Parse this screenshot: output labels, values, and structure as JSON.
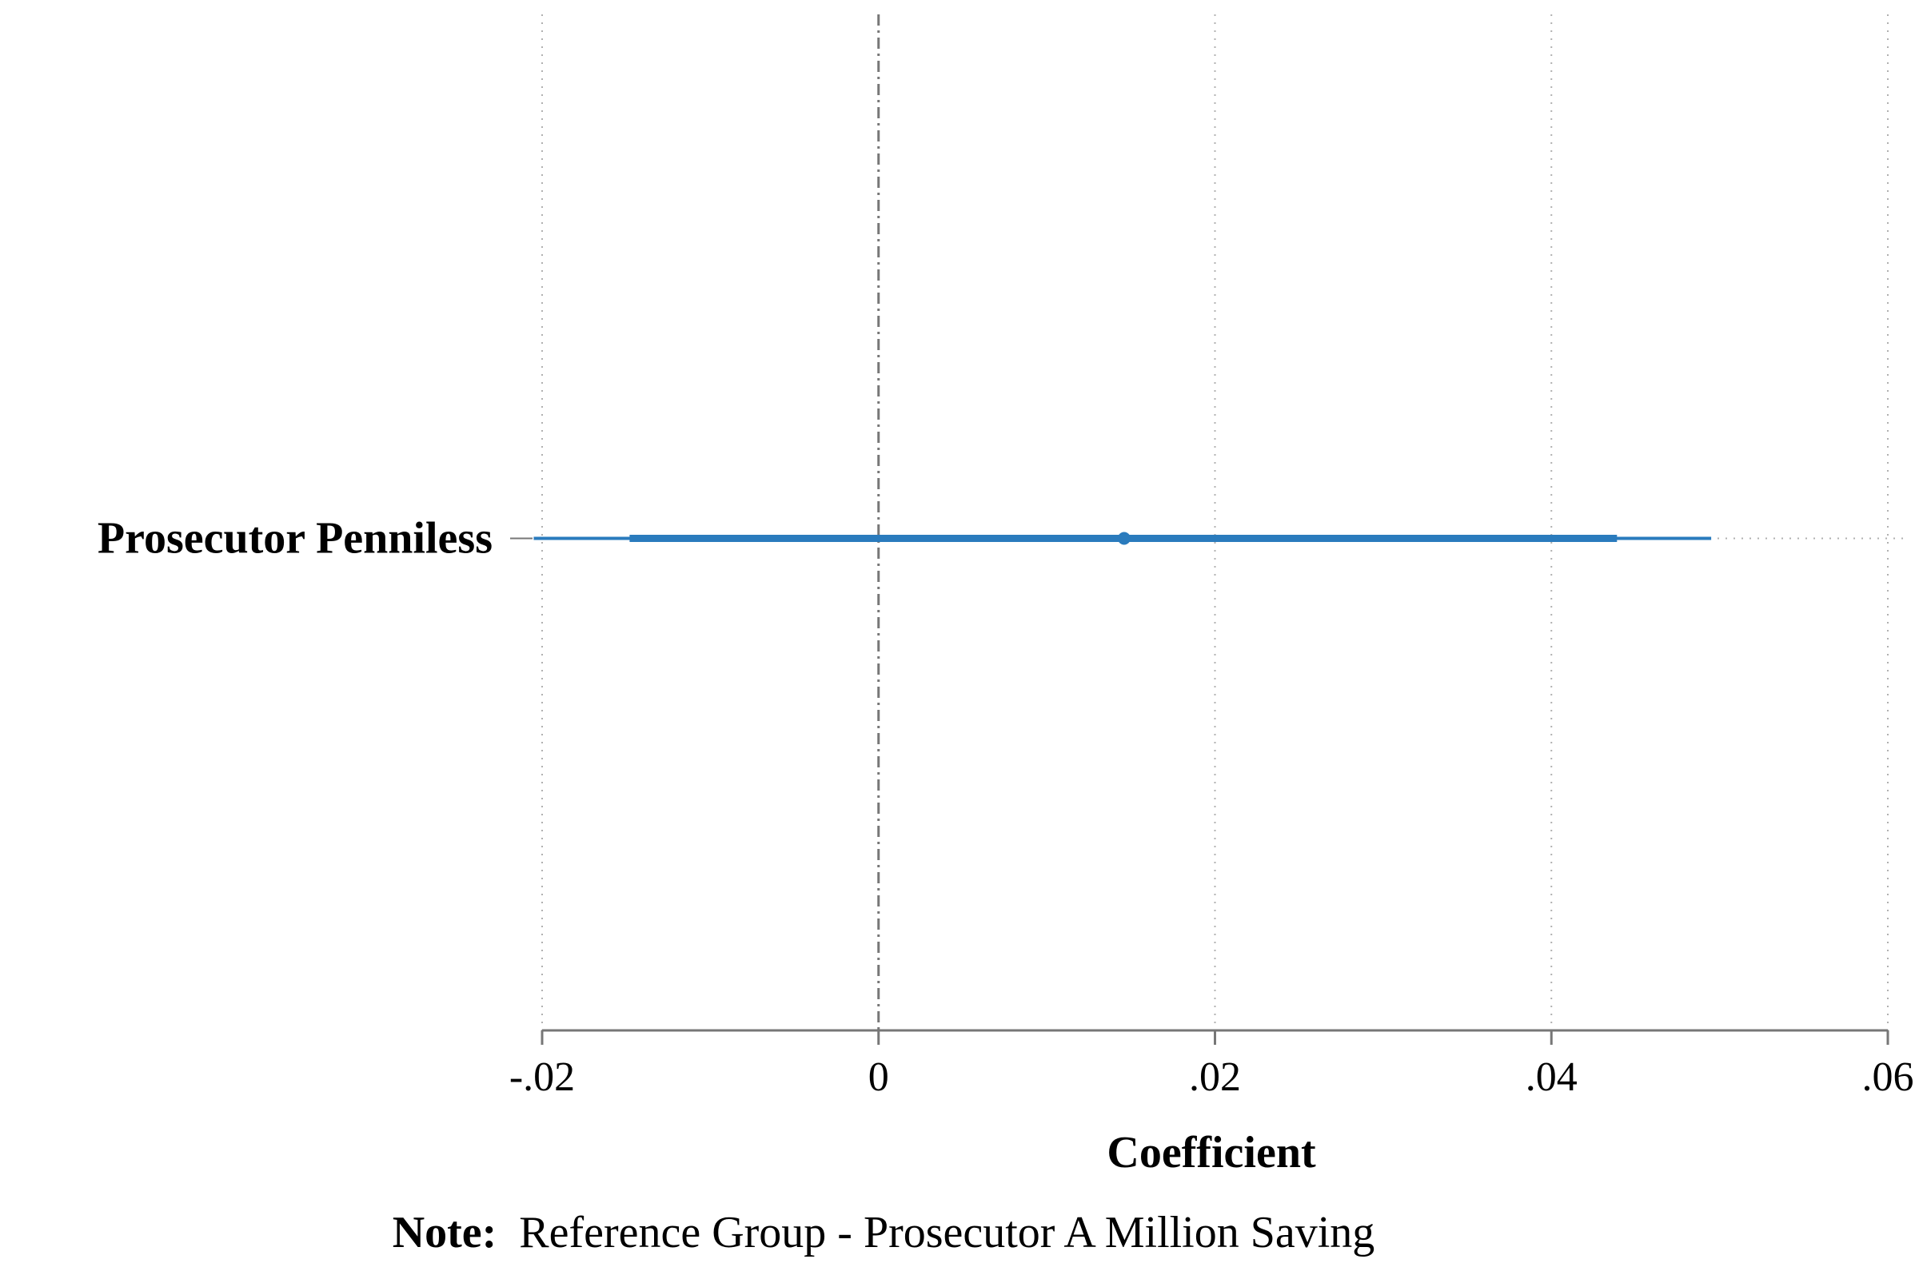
{
  "chart_data": {
    "type": "coefficient-plot",
    "orientation": "horizontal",
    "categories": [
      "Prosecutor Penniless"
    ],
    "series": [
      {
        "estimates": [
          0.0146
        ],
        "ci_inner": [
          [
            -0.0148,
            0.0439
          ]
        ],
        "ci_outer": [
          [
            -0.0205,
            0.0495
          ]
        ]
      }
    ],
    "xlim": [
      -0.02,
      0.06
    ],
    "xticks": [
      -0.02,
      0,
      0.02,
      0.04,
      0.06
    ],
    "xtick_labels": [
      "-.02",
      "0",
      ".02",
      ".04",
      ".06"
    ],
    "reference_line": 0,
    "xlabel": "Coefficient",
    "grid": true,
    "colors": {
      "series": "#2a7bbd",
      "axis": "#777777",
      "grid": "#b0b0b0",
      "reference": "#777777"
    }
  },
  "note": {
    "label": "Note:",
    "text": "Reference Group - Prosecutor A Million Saving"
  }
}
